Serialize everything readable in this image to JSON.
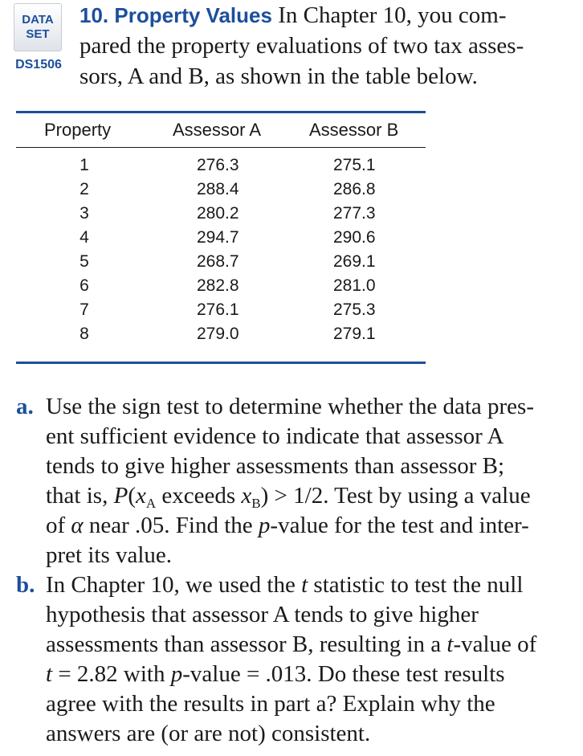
{
  "badge": {
    "line1": "DATA",
    "line2": "SET",
    "id": "DS1506"
  },
  "exercise": {
    "number": "10.",
    "title": "Property Values",
    "intro_lines": [
      "In Chapter 10, you com-",
      "pared the property evaluations of two tax asses-",
      "sors, A and B, as shown in the table below."
    ]
  },
  "table": {
    "headers": [
      "Property",
      "Assessor A",
      "Assessor B"
    ],
    "rows": [
      [
        "1",
        "276.3",
        "275.1"
      ],
      [
        "2",
        "288.4",
        "286.8"
      ],
      [
        "3",
        "280.2",
        "277.3"
      ],
      [
        "4",
        "294.7",
        "290.6"
      ],
      [
        "5",
        "268.7",
        "269.1"
      ],
      [
        "6",
        "282.8",
        "281.0"
      ],
      [
        "7",
        "276.1",
        "275.3"
      ],
      [
        "8",
        "279.0",
        "279.1"
      ]
    ]
  },
  "parts": {
    "a": {
      "label": "a.",
      "line1": "Use the sign test to determine whether the data pres-",
      "line2": "ent sufficient evidence to indicate that assessor A",
      "line3": "tends to give higher assessments than assessor B;",
      "line4_pre": "that is, ",
      "line4_P": "P",
      "line4_open": "(",
      "line4_xa": "x",
      "line4_suba": "A",
      "line4_mid": " exceeds ",
      "line4_xb": "x",
      "line4_subb": "B",
      "line4_post": ") > 1/2. Test by using a value",
      "line5_pre": "of ",
      "line5_alpha": "α",
      "line5_mid": " near .05. Find the ",
      "line5_p": "p",
      "line5_post": "-value for the test and inter-",
      "line6": "pret its value."
    },
    "b": {
      "label": "b.",
      "line1_pre": "In Chapter 10, we used the ",
      "line1_t": "t",
      "line1_post": " statistic to test the null",
      "line2": "hypothesis that assessor A tends to give higher",
      "line3_pre": "assessments than assessor B, resulting in a ",
      "line3_t": "t",
      "line3_post": "-value of",
      "line4_t": "t",
      "line4_mid": " = 2.82 with ",
      "line4_p": "p",
      "line4_post": "-value = .013. Do these test results",
      "line5": "agree with the results in part a? Explain why the",
      "line6": "answers are (or are not) consistent."
    }
  }
}
